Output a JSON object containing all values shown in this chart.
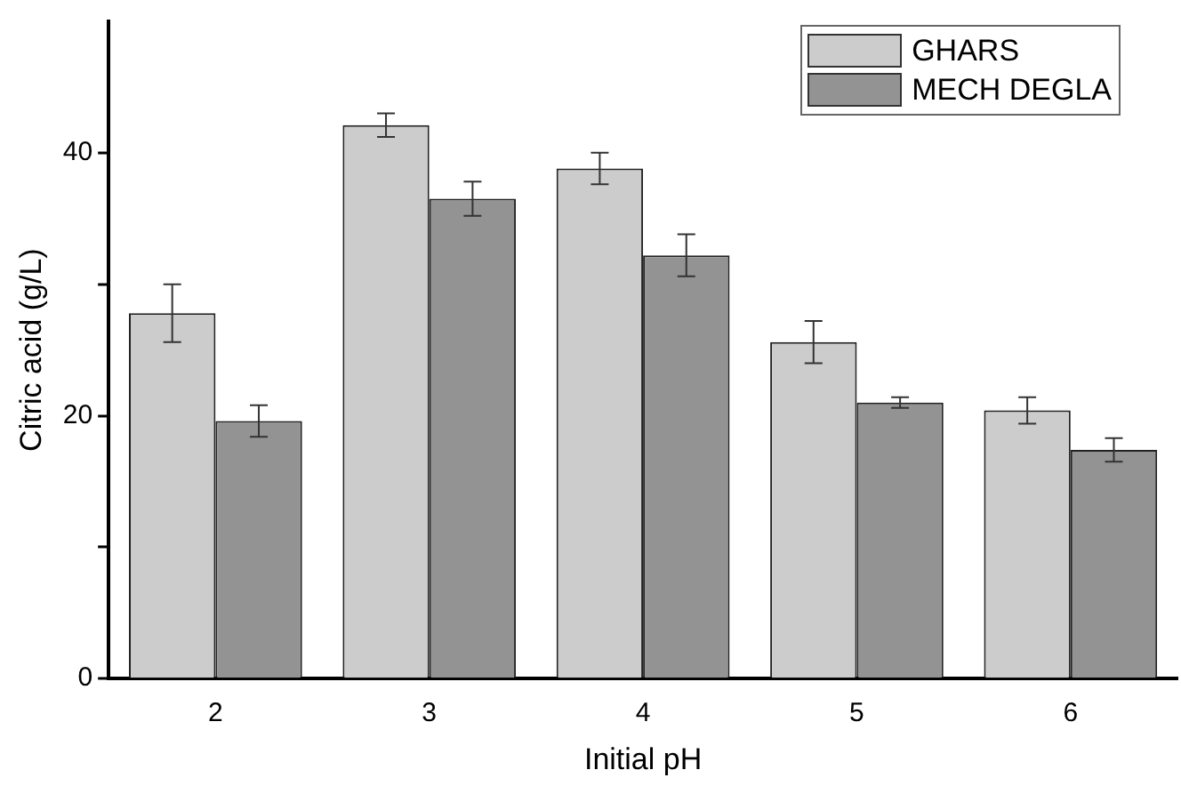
{
  "chart_data": {
    "type": "bar",
    "xlabel": "Initial pH",
    "ylabel": "Citric acid (g/L)",
    "categories": [
      "2",
      "3",
      "4",
      "5",
      "6"
    ],
    "series": [
      {
        "name": "GHARS",
        "color": "#cccccc",
        "values": [
          27.8,
          42.1,
          38.8,
          25.6,
          20.4
        ],
        "errors": [
          2.2,
          0.9,
          1.2,
          1.6,
          1.0
        ]
      },
      {
        "name": "MECH DEGLA",
        "color": "#939393",
        "values": [
          19.6,
          36.5,
          32.2,
          21.0,
          17.4
        ],
        "errors": [
          1.2,
          1.3,
          1.6,
          0.4,
          0.9
        ]
      }
    ],
    "ylim": [
      0,
      50
    ],
    "yticks": [
      0,
      {
        "value": 10,
        "label": null
      },
      20,
      {
        "value": 30,
        "label": null
      },
      40
    ],
    "grid": false,
    "legend": "top right"
  }
}
